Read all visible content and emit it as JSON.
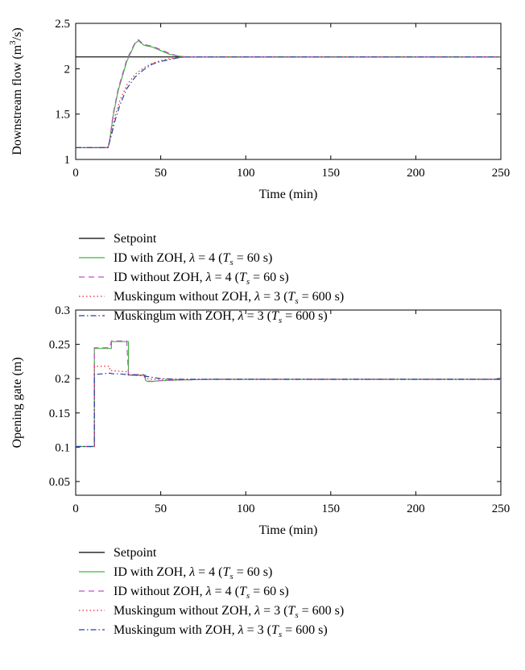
{
  "chart_data": [
    {
      "type": "line",
      "xlabel": "Time (min)",
      "ylabel_main": "Downstream flow (m",
      "ylabel_sup": "3",
      "ylabel_tail": "/s)",
      "xlim": [
        0,
        250
      ],
      "ylim": [
        1,
        2.5
      ],
      "xticks": [
        0,
        50,
        100,
        150,
        200,
        250
      ],
      "yticks": [
        1,
        1.5,
        2,
        2.5
      ],
      "xtick_labels": [
        "0",
        "50",
        "100",
        "150",
        "200",
        "250"
      ],
      "ytick_labels": [
        "1",
        "1.5",
        "2",
        "2.5"
      ],
      "grid": false,
      "legend_position": "below",
      "series": [
        {
          "key": "setpoint",
          "x": [
            0,
            250
          ],
          "y": [
            2.13,
            2.13
          ]
        },
        {
          "key": "id_zoh",
          "x": [
            0,
            19,
            20,
            22,
            25,
            30,
            35,
            37,
            38,
            40,
            42,
            45,
            50,
            55,
            60,
            65,
            70,
            80,
            250
          ],
          "y": [
            1.13,
            1.13,
            1.2,
            1.48,
            1.76,
            2.08,
            2.28,
            2.31,
            2.29,
            2.26,
            2.25,
            2.24,
            2.2,
            2.16,
            2.14,
            2.13,
            2.13,
            2.13,
            2.13
          ]
        },
        {
          "key": "id_nozoh",
          "x": [
            0,
            19,
            20,
            22,
            25,
            30,
            35,
            37,
            38,
            40,
            42,
            45,
            50,
            55,
            60,
            65,
            70,
            80,
            250
          ],
          "y": [
            1.13,
            1.13,
            1.21,
            1.5,
            1.78,
            2.1,
            2.29,
            2.32,
            2.3,
            2.27,
            2.26,
            2.25,
            2.21,
            2.17,
            2.14,
            2.13,
            2.13,
            2.13,
            2.13
          ]
        },
        {
          "key": "musk_nozoh",
          "x": [
            0,
            19,
            21,
            23,
            26,
            30,
            35,
            40,
            45,
            50,
            55,
            60,
            65,
            70,
            80,
            250
          ],
          "y": [
            1.13,
            1.13,
            1.3,
            1.47,
            1.65,
            1.82,
            1.94,
            2.01,
            2.06,
            2.09,
            2.11,
            2.12,
            2.13,
            2.13,
            2.13,
            2.13
          ]
        },
        {
          "key": "musk_zoh",
          "x": [
            0,
            19,
            21,
            23,
            26,
            30,
            35,
            40,
            45,
            50,
            55,
            60,
            65,
            70,
            80,
            250
          ],
          "y": [
            1.13,
            1.13,
            1.27,
            1.42,
            1.6,
            1.78,
            1.91,
            1.99,
            2.05,
            2.08,
            2.1,
            2.12,
            2.13,
            2.13,
            2.13,
            2.13
          ]
        }
      ]
    },
    {
      "type": "line",
      "xlabel": "Time (min)",
      "ylabel_main": "Opening gate (m)",
      "ylabel_sup": "",
      "ylabel_tail": "",
      "xlim": [
        0,
        250
      ],
      "ylim": [
        0.03,
        0.3
      ],
      "xticks": [
        0,
        50,
        100,
        150,
        200,
        250
      ],
      "yticks": [
        0.05,
        0.1,
        0.15,
        0.2,
        0.25,
        0.3
      ],
      "xtick_labels": [
        "0",
        "50",
        "100",
        "150",
        "200",
        "250"
      ],
      "ytick_labels": [
        "0.05",
        "0.1",
        "0.15",
        "0.2",
        "0.25",
        "0.3"
      ],
      "grid": false,
      "legend_position": "below",
      "series": [
        {
          "key": "setpoint",
          "x": [],
          "y": []
        },
        {
          "key": "id_zoh",
          "x": [
            0,
            10,
            10,
            11,
            11,
            20,
            20,
            21,
            21,
            30,
            30,
            31,
            31,
            40,
            40,
            41,
            41,
            42,
            45,
            50,
            60,
            80,
            250
          ],
          "y": [
            0.101,
            0.101,
            0.101,
            0.101,
            0.244,
            0.244,
            0.244,
            0.244,
            0.254,
            0.254,
            0.254,
            0.254,
            0.205,
            0.205,
            0.205,
            0.205,
            0.198,
            0.196,
            0.196,
            0.197,
            0.198,
            0.199,
            0.199
          ]
        },
        {
          "key": "id_nozoh",
          "x": [
            0,
            11,
            11,
            20,
            21,
            30,
            31,
            40,
            41,
            42,
            45,
            50,
            60,
            80,
            250
          ],
          "y": [
            0.101,
            0.101,
            0.245,
            0.245,
            0.255,
            0.255,
            0.206,
            0.206,
            0.199,
            0.197,
            0.196,
            0.197,
            0.198,
            0.199,
            0.199
          ]
        },
        {
          "key": "musk_nozoh",
          "x": [
            0,
            11,
            11,
            20,
            20,
            30,
            31,
            40,
            42,
            45,
            50,
            60,
            80,
            250
          ],
          "y": [
            0.101,
            0.101,
            0.218,
            0.218,
            0.212,
            0.21,
            0.205,
            0.205,
            0.2,
            0.199,
            0.199,
            0.199,
            0.199,
            0.199
          ]
        },
        {
          "key": "musk_zoh",
          "x": [
            0,
            11,
            11,
            20,
            22,
            25,
            30,
            35,
            40,
            45,
            50,
            60,
            80,
            250
          ],
          "y": [
            0.101,
            0.101,
            0.206,
            0.208,
            0.207,
            0.207,
            0.206,
            0.205,
            0.204,
            0.202,
            0.2,
            0.199,
            0.199,
            0.199
          ]
        }
      ]
    }
  ],
  "legend": [
    {
      "key": "setpoint",
      "label": "Setpoint",
      "color": "#000000",
      "dash": ""
    },
    {
      "key": "id_zoh",
      "label_pre": "ID with ZOH, ",
      "lambda_val": "4",
      "ts_val": "60 s",
      "color": "#3db83a",
      "dash": ""
    },
    {
      "key": "id_nozoh",
      "label_pre": "ID without ZOH, ",
      "lambda_val": "4",
      "ts_val": "60 s",
      "color": "#c04fc8",
      "dash": "7,5"
    },
    {
      "key": "musk_nozoh",
      "label_pre": "Muskingum without ZOH, ",
      "lambda_val": "3",
      "ts_val": "600 s",
      "color": "#e2262c",
      "dash": "1.5,3"
    },
    {
      "key": "musk_zoh",
      "label_pre": "Muskingum with ZOH, ",
      "lambda_val": "3",
      "ts_val": "600 s",
      "color": "#22449c",
      "dash": "7,3,1.5,3"
    }
  ],
  "legend_text": {
    "lambda": "λ",
    "eq": " = ",
    "ts_T": "T",
    "ts_sub": "s"
  }
}
